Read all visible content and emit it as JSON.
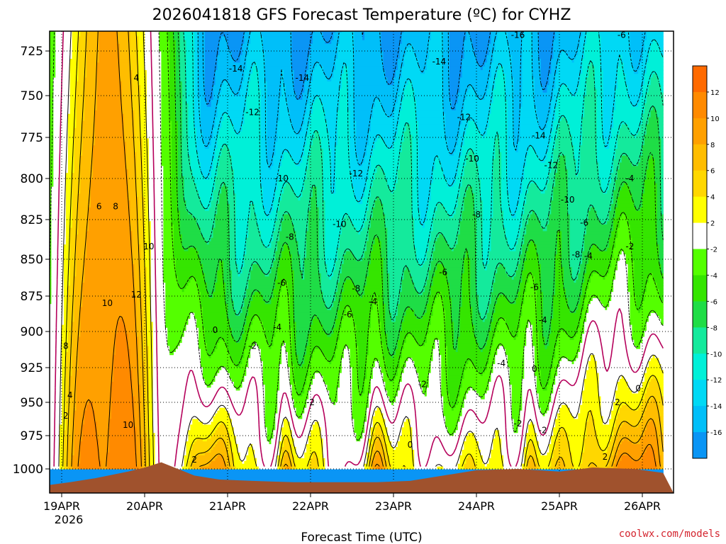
{
  "chart_data": {
    "type": "heatmap",
    "title": "2026041818 GFS Forecast Temperature (ºC) for CYHZ",
    "xlabel": "Forecast Time (UTC)",
    "ylabel": "",
    "x_ticks": [
      {
        "label": "19APR",
        "sublabel": "2026",
        "day": 0
      },
      {
        "label": "20APR",
        "sublabel": "",
        "day": 1
      },
      {
        "label": "21APR",
        "sublabel": "",
        "day": 2
      },
      {
        "label": "22APR",
        "sublabel": "",
        "day": 3
      },
      {
        "label": "23APR",
        "sublabel": "",
        "day": 4
      },
      {
        "label": "24APR",
        "sublabel": "",
        "day": 5
      },
      {
        "label": "25APR",
        "sublabel": "",
        "day": 6
      },
      {
        "label": "26APR",
        "sublabel": "",
        "day": 7
      }
    ],
    "x_range_days": [
      -0.25,
      7.25
    ],
    "y_levels_hpa": [
      725,
      750,
      775,
      800,
      825,
      850,
      875,
      900,
      925,
      950,
      975,
      1000
    ],
    "y_range_hpa": [
      700,
      1015
    ],
    "grid": true,
    "colorbar_levels": [
      12,
      10,
      8,
      6,
      4,
      2,
      -2,
      -4,
      -6,
      -8,
      -10,
      -12,
      -14,
      -16
    ],
    "colorbar_bands": [
      {
        "lo": 12,
        "hi": 14,
        "color": "#ff6a00"
      },
      {
        "lo": 10,
        "hi": 12,
        "color": "#ff8a00"
      },
      {
        "lo": 8,
        "hi": 10,
        "color": "#ffa000"
      },
      {
        "lo": 6,
        "hi": 8,
        "color": "#ffbd00"
      },
      {
        "lo": 4,
        "hi": 6,
        "color": "#ffd700"
      },
      {
        "lo": 2,
        "hi": 4,
        "color": "#ffff00"
      },
      {
        "lo": -2,
        "hi": 2,
        "color": "#ffffff"
      },
      {
        "lo": -4,
        "hi": -2,
        "color": "#54ff00"
      },
      {
        "lo": -6,
        "hi": -4,
        "color": "#35e500"
      },
      {
        "lo": -8,
        "hi": -6,
        "color": "#1fdd46"
      },
      {
        "lo": -10,
        "hi": -8,
        "color": "#14ea9c"
      },
      {
        "lo": -12,
        "hi": -10,
        "color": "#00f0d8"
      },
      {
        "lo": -14,
        "hi": -12,
        "color": "#00d9f5"
      },
      {
        "lo": -16,
        "hi": -14,
        "color": "#00bff9"
      },
      {
        "lo": -18,
        "hi": -16,
        "color": "#0a95f5"
      }
    ],
    "terrain_color": "#a0522d",
    "contour_labels": [
      {
        "text": "4",
        "day": 0.9,
        "p": 740
      },
      {
        "text": "6",
        "day": 0.45,
        "p": 817
      },
      {
        "text": "8",
        "day": 0.65,
        "p": 817
      },
      {
        "text": "10",
        "day": 1.05,
        "p": 842
      },
      {
        "text": "10",
        "day": 0.55,
        "p": 880
      },
      {
        "text": "12",
        "day": 0.9,
        "p": 874
      },
      {
        "text": "8",
        "day": 0.05,
        "p": 910
      },
      {
        "text": "4",
        "day": 0.1,
        "p": 945
      },
      {
        "text": "2",
        "day": 0.05,
        "p": 960
      },
      {
        "text": "10",
        "day": 0.8,
        "p": 967
      },
      {
        "text": "2",
        "day": 1.6,
        "p": 993
      },
      {
        "text": "0",
        "day": 1.85,
        "p": 899
      },
      {
        "text": "-2",
        "day": 2.3,
        "p": 910
      },
      {
        "text": "-4",
        "day": 2.6,
        "p": 897
      },
      {
        "text": "-2",
        "day": 3.0,
        "p": 950
      },
      {
        "text": "-14",
        "day": 2.1,
        "p": 735
      },
      {
        "text": "-12",
        "day": 2.3,
        "p": 760
      },
      {
        "text": "-14",
        "day": 2.9,
        "p": 740
      },
      {
        "text": "-10",
        "day": 2.65,
        "p": 800
      },
      {
        "text": "-8",
        "day": 2.75,
        "p": 836
      },
      {
        "text": "-6",
        "day": 2.65,
        "p": 866
      },
      {
        "text": "-10",
        "day": 3.35,
        "p": 828
      },
      {
        "text": "-12",
        "day": 3.55,
        "p": 797
      },
      {
        "text": "-8",
        "day": 3.55,
        "p": 870
      },
      {
        "text": "-6",
        "day": 3.45,
        "p": 888
      },
      {
        "text": "-4",
        "day": 3.75,
        "p": 879
      },
      {
        "text": "-14",
        "day": 4.55,
        "p": 731
      },
      {
        "text": "-12",
        "day": 4.85,
        "p": 763
      },
      {
        "text": "-10",
        "day": 4.95,
        "p": 788
      },
      {
        "text": "-8",
        "day": 5.0,
        "p": 822
      },
      {
        "text": "-6",
        "day": 4.6,
        "p": 859
      },
      {
        "text": "-2",
        "day": 4.35,
        "p": 937
      },
      {
        "text": "0",
        "day": 4.2,
        "p": 982
      },
      {
        "text": "-4",
        "day": 5.3,
        "p": 922
      },
      {
        "text": "-16",
        "day": 5.5,
        "p": 716
      },
      {
        "text": "-14",
        "day": 5.75,
        "p": 774
      },
      {
        "text": "-12",
        "day": 5.9,
        "p": 792
      },
      {
        "text": "-10",
        "day": 6.1,
        "p": 813
      },
      {
        "text": "-6",
        "day": 5.7,
        "p": 869
      },
      {
        "text": "-4",
        "day": 5.8,
        "p": 892
      },
      {
        "text": "-6",
        "day": 6.3,
        "p": 827
      },
      {
        "text": "-8",
        "day": 6.2,
        "p": 847
      },
      {
        "text": "-4",
        "day": 6.35,
        "p": 848
      },
      {
        "text": "0",
        "day": 5.7,
        "p": 926
      },
      {
        "text": "-2",
        "day": 5.5,
        "p": 966
      },
      {
        "text": "-2",
        "day": 5.8,
        "p": 971
      },
      {
        "text": "-6",
        "day": 6.75,
        "p": 716
      },
      {
        "text": "-4",
        "day": 6.85,
        "p": 800
      },
      {
        "text": "-2",
        "day": 6.85,
        "p": 842
      },
      {
        "text": "2",
        "day": 6.7,
        "p": 950
      },
      {
        "text": "0",
        "day": 6.95,
        "p": 940
      },
      {
        "text": "2",
        "day": 6.55,
        "p": 991
      }
    ],
    "credit": "coolwx.com/models"
  }
}
